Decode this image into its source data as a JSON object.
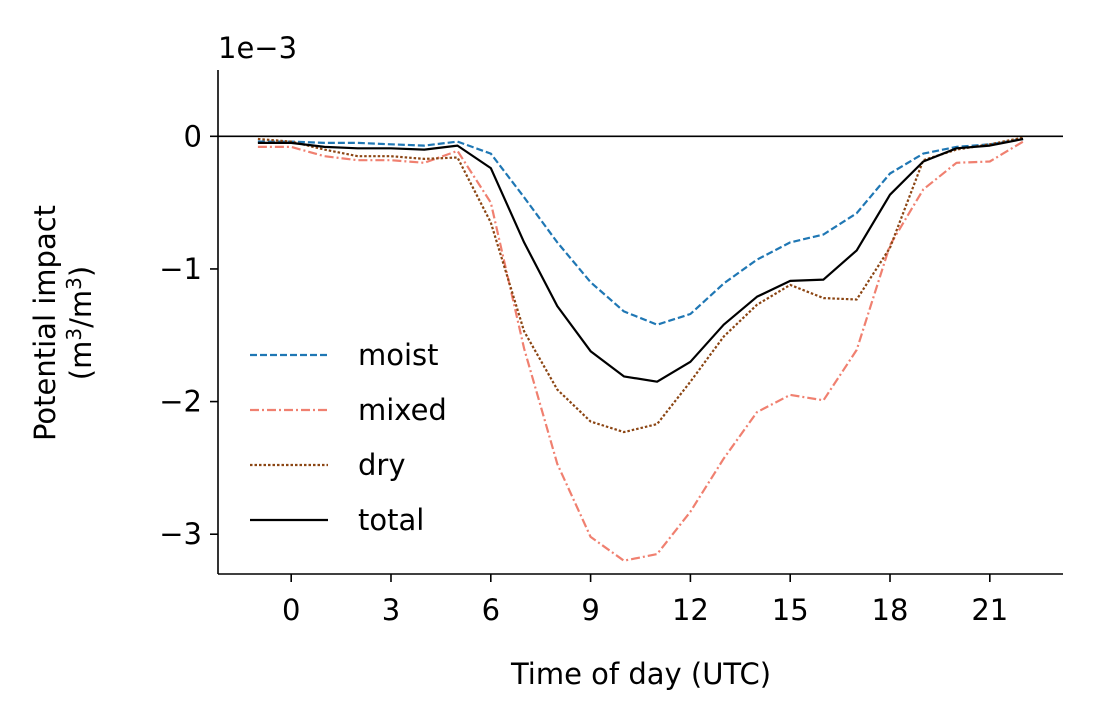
{
  "chart_data": {
    "type": "line",
    "xlabel": "Time of day (UTC)",
    "ylabel_line1": "Potential impact",
    "ylabel_line2_prefix": "(m",
    "ylabel_sup1": "3",
    "ylabel_line2_mid": "/m",
    "ylabel_sup2": "3",
    "ylabel_line2_suffix": ")",
    "y_offset_label": "1e−3",
    "xlim": [
      -2.2,
      23.2
    ],
    "ylim": [
      -3.3,
      0.5
    ],
    "xticks": [
      0,
      3,
      6,
      9,
      12,
      15,
      18,
      21
    ],
    "xtick_labels": [
      "0",
      "3",
      "6",
      "9",
      "12",
      "15",
      "18",
      "21"
    ],
    "yticks": [
      0,
      -1,
      -2,
      -3
    ],
    "ytick_labels": [
      "0",
      "−1",
      "−2",
      "−3"
    ],
    "zero_line": true,
    "grid": false,
    "legend_position": "lower-left",
    "x": [
      -1,
      0,
      1,
      2,
      3,
      4,
      5,
      6,
      7,
      8,
      9,
      10,
      11,
      12,
      13,
      14,
      15,
      16,
      17,
      18,
      19,
      20,
      21,
      22
    ],
    "series": [
      {
        "name": "moist",
        "color": "#1f77b4",
        "dash": "dashed",
        "values": [
          -0.04,
          -0.04,
          -0.05,
          -0.05,
          -0.06,
          -0.07,
          -0.04,
          -0.13,
          -0.46,
          -0.8,
          -1.1,
          -1.32,
          -1.42,
          -1.34,
          -1.11,
          -0.93,
          -0.8,
          -0.74,
          -0.58,
          -0.28,
          -0.13,
          -0.08,
          -0.06,
          -0.02
        ]
      },
      {
        "name": "mixed",
        "color": "#f08070",
        "dash": "dashdot",
        "values": [
          -0.08,
          -0.08,
          -0.15,
          -0.18,
          -0.18,
          -0.2,
          -0.11,
          -0.5,
          -1.6,
          -2.47,
          -3.02,
          -3.2,
          -3.15,
          -2.83,
          -2.43,
          -2.08,
          -1.95,
          -1.99,
          -1.61,
          -0.82,
          -0.4,
          -0.2,
          -0.19,
          -0.04
        ]
      },
      {
        "name": "dry",
        "color": "#8b4513",
        "dash": "dotted",
        "values": [
          -0.02,
          -0.04,
          -0.1,
          -0.15,
          -0.15,
          -0.17,
          -0.16,
          -0.65,
          -1.47,
          -1.91,
          -2.15,
          -2.23,
          -2.17,
          -1.85,
          -1.51,
          -1.27,
          -1.12,
          -1.22,
          -1.23,
          -0.84,
          -0.18,
          -0.1,
          -0.06,
          -0.01
        ]
      },
      {
        "name": "total",
        "color": "#000000",
        "dash": "solid",
        "values": [
          -0.05,
          -0.05,
          -0.08,
          -0.09,
          -0.09,
          -0.1,
          -0.07,
          -0.24,
          -0.8,
          -1.28,
          -1.62,
          -1.81,
          -1.85,
          -1.7,
          -1.42,
          -1.21,
          -1.09,
          -1.08,
          -0.86,
          -0.44,
          -0.19,
          -0.09,
          -0.07,
          -0.02
        ]
      }
    ]
  }
}
